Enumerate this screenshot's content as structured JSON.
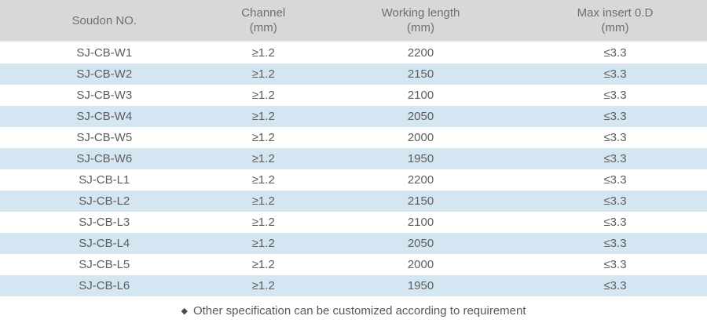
{
  "table": {
    "columns": [
      "Soudon NO.",
      "Channel\n(mm)",
      "Working length\n(mm)",
      "Max insert 0.D\n(mm)"
    ],
    "rows": [
      [
        "SJ-CB-W1",
        "≥1.2",
        "2200",
        "≤3.3"
      ],
      [
        "SJ-CB-W2",
        "≥1.2",
        "2150",
        "≤3.3"
      ],
      [
        "SJ-CB-W3",
        "≥1.2",
        "2100",
        "≤3.3"
      ],
      [
        "SJ-CB-W4",
        "≥1.2",
        "2050",
        "≤3.3"
      ],
      [
        "SJ-CB-W5",
        "≥1.2",
        "2000",
        "≤3.3"
      ],
      [
        "SJ-CB-W6",
        "≥1.2",
        "1950",
        "≤3.3"
      ],
      [
        "SJ-CB-L1",
        "≥1.2",
        "2200",
        "≤3.3"
      ],
      [
        "SJ-CB-L2",
        "≥1.2",
        "2150",
        "≤3.3"
      ],
      [
        "SJ-CB-L3",
        "≥1.2",
        "2100",
        "≤3.3"
      ],
      [
        "SJ-CB-L4",
        "≥1.2",
        "2050",
        "≤3.3"
      ],
      [
        "SJ-CB-L5",
        "≥1.2",
        "2000",
        "≤3.3"
      ],
      [
        "SJ-CB-L6",
        "≥1.2",
        "1950",
        "≤3.3"
      ]
    ]
  },
  "footnote": {
    "bullet": "◆",
    "text": "Other specification can be customized according to requirement"
  },
  "colors": {
    "header_bg": "#d8d8d8",
    "stripe_bg": "#d4e6f1",
    "header_text": "#6d6e70",
    "cell_text": "#5c5d5f",
    "footnote_text": "#58595b"
  }
}
